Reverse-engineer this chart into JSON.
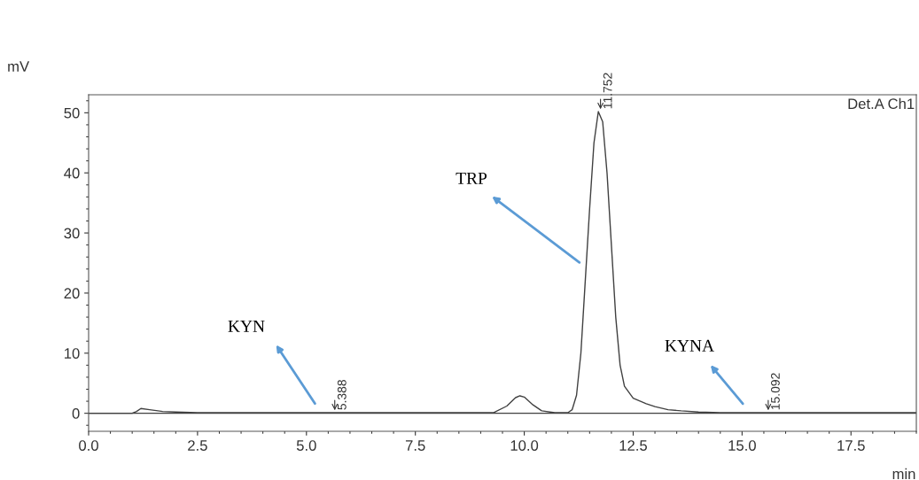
{
  "chart_data": {
    "type": "line",
    "xlabel": "min",
    "ylabel": "mV",
    "x": [
      0,
      1.0,
      1.1,
      1.2,
      1.4,
      1.7,
      2.0,
      2.5,
      3.5,
      5.0,
      5.5,
      6.0,
      8.5,
      9.3,
      9.6,
      9.8,
      9.9,
      10.0,
      10.2,
      10.4,
      10.7,
      11.0,
      11.1,
      11.2,
      11.3,
      11.4,
      11.5,
      11.6,
      11.7,
      11.8,
      11.9,
      12.0,
      12.1,
      12.2,
      12.3,
      12.5,
      12.8,
      13.0,
      13.3,
      13.6,
      14.0,
      14.5,
      15.0,
      15.6,
      16.0,
      19.0
    ],
    "series": [
      {
        "color": "#404040",
        "values": [
          0,
          0,
          0.3,
          0.8,
          0.6,
          0.3,
          0.2,
          0.1,
          0.1,
          0.1,
          0.1,
          0.1,
          0.1,
          0.1,
          1.2,
          2.6,
          2.9,
          2.7,
          1.4,
          0.4,
          0.1,
          0.1,
          0.6,
          3,
          10,
          22,
          34,
          45,
          50.2,
          48.5,
          40,
          28,
          16,
          8,
          4.5,
          2.5,
          1.6,
          1.1,
          0.6,
          0.4,
          0.2,
          0.1,
          0.1,
          0.1,
          0.1,
          0.1
        ]
      }
    ],
    "xlim": [
      0,
      19
    ],
    "xticks": [
      {
        "value": 0,
        "label": "0.0"
      },
      {
        "value": 2.5,
        "label": "2.5"
      },
      {
        "value": 5,
        "label": "5.0"
      },
      {
        "value": 7.5,
        "label": "7.5"
      },
      {
        "value": 10,
        "label": "10.0"
      },
      {
        "value": 12.5,
        "label": "12.5"
      },
      {
        "value": 15,
        "label": "15.0"
      },
      {
        "value": 17.5,
        "label": "17.5"
      }
    ],
    "ylim": [
      -3,
      53
    ],
    "yticks": [
      0,
      10,
      20,
      30,
      40,
      50
    ],
    "grid": false,
    "legend": false,
    "marker": "none",
    "line_style": "solid",
    "ref_lines": [
      {
        "axis": "y",
        "value": 0,
        "color": "#404040",
        "line_style": "solid"
      }
    ],
    "annotations": [
      {
        "text": "5.388",
        "x": 5.65,
        "y": 0.1
      },
      {
        "text": "11.752",
        "x": 11.75,
        "y": 50.2
      },
      {
        "text": "15.092",
        "x": 15.6,
        "y": 0.1
      },
      "KYN",
      "TRP",
      "KYNA",
      "Det.A Ch1"
    ]
  }
}
